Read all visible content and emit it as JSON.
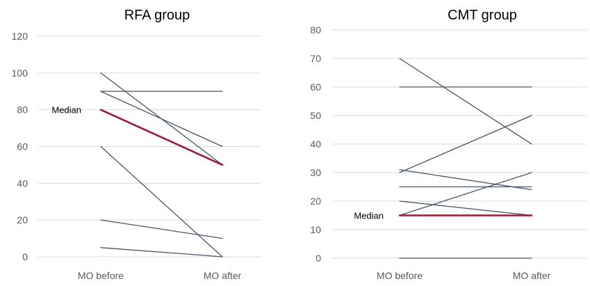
{
  "chart_data": [
    {
      "type": "line",
      "title": "RFA group",
      "categories": [
        "MO before",
        "MO after"
      ],
      "ylim": [
        0,
        120
      ],
      "yticks": [
        0,
        20,
        40,
        60,
        80,
        100,
        120
      ],
      "grid": true,
      "series": [
        {
          "values": [
            100,
            50
          ]
        },
        {
          "values": [
            90,
            90
          ]
        },
        {
          "values": [
            90,
            60
          ]
        },
        {
          "values": [
            60,
            0
          ]
        },
        {
          "values": [
            20,
            10
          ]
        },
        {
          "values": [
            5,
            0
          ]
        },
        {
          "name": "Median",
          "values": [
            80,
            50
          ],
          "highlight": true
        }
      ],
      "annotation": {
        "text": "Median",
        "value": 80
      }
    },
    {
      "type": "line",
      "title": "CMT group",
      "categories": [
        "MO before",
        "MO after"
      ],
      "ylim": [
        0,
        80
      ],
      "yticks": [
        0,
        10,
        20,
        30,
        40,
        50,
        60,
        70,
        80
      ],
      "grid": true,
      "series": [
        {
          "values": [
            70,
            40
          ]
        },
        {
          "values": [
            60,
            60
          ]
        },
        {
          "values": [
            30,
            50
          ]
        },
        {
          "values": [
            31,
            24
          ]
        },
        {
          "values": [
            25,
            25
          ]
        },
        {
          "values": [
            15,
            30
          ]
        },
        {
          "values": [
            20,
            15
          ]
        },
        {
          "values": [
            0,
            0
          ]
        },
        {
          "name": "Median",
          "values": [
            15,
            15
          ],
          "highlight": true
        }
      ],
      "annotation": {
        "text": "Median",
        "value": 15
      }
    }
  ],
  "colors": {
    "series_line": "#44546A",
    "median_line": "#A5163A",
    "gridline": "#D9D9D9",
    "axis_text": "#595959"
  }
}
